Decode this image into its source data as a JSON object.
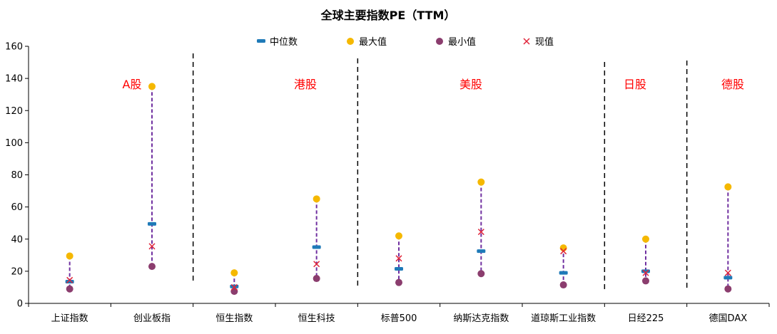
{
  "chart_data": {
    "type": "scatter",
    "title": "全球主要指数PE（TTM）",
    "categories": [
      "上证指数",
      "创业板指",
      "恒生指数",
      "恒生科技",
      "标普500",
      "纳斯达克指数",
      "道琼斯工业指数",
      "日经225",
      "德国DAX"
    ],
    "series": [
      {
        "name": "中位数",
        "values": [
          13.5,
          49.5,
          10.5,
          35,
          21.5,
          32.5,
          19,
          20,
          16
        ]
      },
      {
        "name": "最大值",
        "values": [
          29.5,
          135,
          19,
          65,
          42,
          75.5,
          34.5,
          40,
          72.5
        ]
      },
      {
        "name": "最小值",
        "values": [
          9,
          23,
          7.5,
          15.5,
          13,
          18.5,
          11.5,
          14,
          9
        ]
      },
      {
        "name": "现值",
        "values": [
          14.5,
          35.5,
          10,
          24.5,
          28,
          44.5,
          32.5,
          19,
          19
        ]
      }
    ],
    "ylim": [
      0,
      160
    ],
    "yticks": [
      "0",
      "20",
      "40",
      "60",
      "80",
      "100",
      "120",
      "140",
      "160"
    ],
    "regions": [
      "A股",
      "港股",
      "美股",
      "日股",
      "德股"
    ],
    "legend_position": "top",
    "grid": false,
    "colors": {
      "median": "#1f7ab8",
      "max": "#f5b800",
      "min": "#8b3d6e",
      "current": "#e0243a",
      "range_line": "#7030a0",
      "region_label": "#ff0000",
      "divider": "#000000"
    }
  }
}
